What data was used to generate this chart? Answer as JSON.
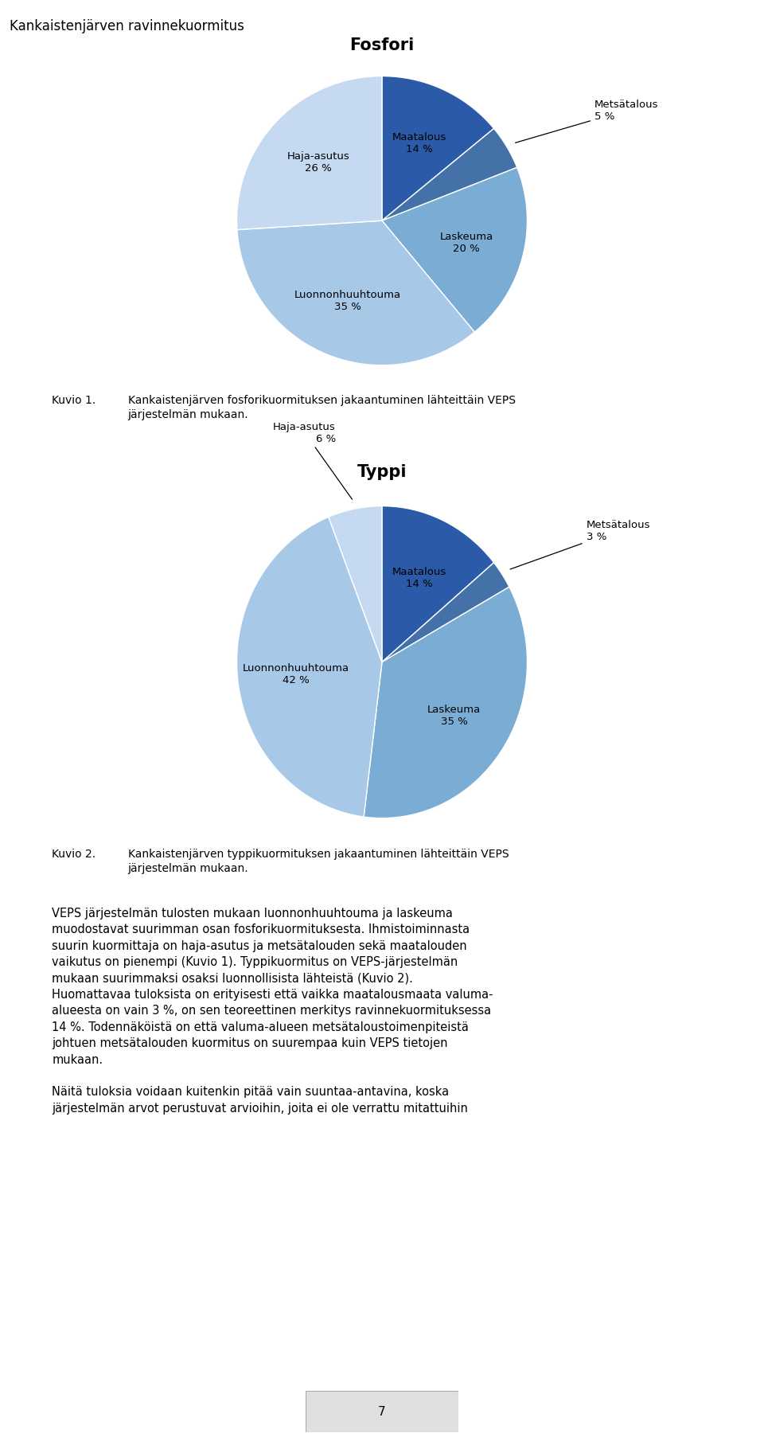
{
  "page_title": "Kankaistenjärven ravinnekuormitus",
  "chart1_title": "Fosfori",
  "chart1_labels": [
    "Maatalous",
    "Metsätalous",
    "Laskeuma",
    "Luonnonhuuhtouma",
    "Haja-asutus"
  ],
  "chart1_values": [
    14,
    5,
    20,
    35,
    26
  ],
  "chart1_pct": [
    "14 %",
    "5 %",
    "20 %",
    "35 %",
    "26 %"
  ],
  "chart1_colors": [
    "#2B5BA8",
    "#4472A8",
    "#7BADD4",
    "#A8C8E8",
    "#C5DAF0"
  ],
  "chart2_title": "Typpi",
  "chart2_labels": [
    "Maatalous",
    "Metsätalous",
    "Laskeuma",
    "Luonnonhuuhtouma",
    "Haja-asutus"
  ],
  "chart2_values": [
    14,
    3,
    35,
    42,
    6
  ],
  "chart2_pct": [
    "14 %",
    "3 %",
    "35 %",
    "42 %",
    "6 %"
  ],
  "chart2_colors": [
    "#2B5BA8",
    "#4472A8",
    "#7BADD4",
    "#A8C8E8",
    "#C5DAF0"
  ],
  "caption1_num": "Kuvio 1.",
  "caption1_text": "Kankaistenjärven fosforikuormituksen jakaantuminen lähteittäin VEPS\njärjestelmän mukaan.",
  "caption2_num": "Kuvio 2.",
  "caption2_text": "Kankaistenjärven typpikuormituksen jakaantuminen lähteittäin VEPS\njärjestelmän mukaan.",
  "body_text1": "VEPS järjestelmän tulosten mukaan luonnonhuuhtouma ja laskeuma\nmuodostavat suurimman osan fosforikuormituksesta. Ihmistoiminnasta\nsuurin kuormittaja on haja-asutus ja metsätalouden sekä maatalouden\nvaikutus on pienempi (Kuvio 1). Typpikuormitus on VEPS-järjestelmän\nmukaan suurimmaksi osaksi luonnollisista lähteistä (Kuvio 2).\nHuomattavaa tuloksista on erityisesti että vaikka maatalousmaata valuma-\nalueesta on vain 3 %, on sen teoreettinen merkitys ravinnekuormituksessa\n14 %. Todennäköistä on että valuma-alueen metsätaloustoimenpiteistä\njohtuen metsätalouden kuormitus on suurempaa kuin VEPS tietojen\nmukaan.",
  "body_text2": "Näitä tuloksia voidaan kuitenkin pitää vain suuntaa-antavina, koska\njärjestelmän arvot perustuvat arvioihin, joita ei ole verrattu mitattuihin",
  "page_number": "7",
  "header_bg": "#8C8C8C",
  "box_border": "#C0C0C0",
  "page_bg": "#FFFFFF"
}
